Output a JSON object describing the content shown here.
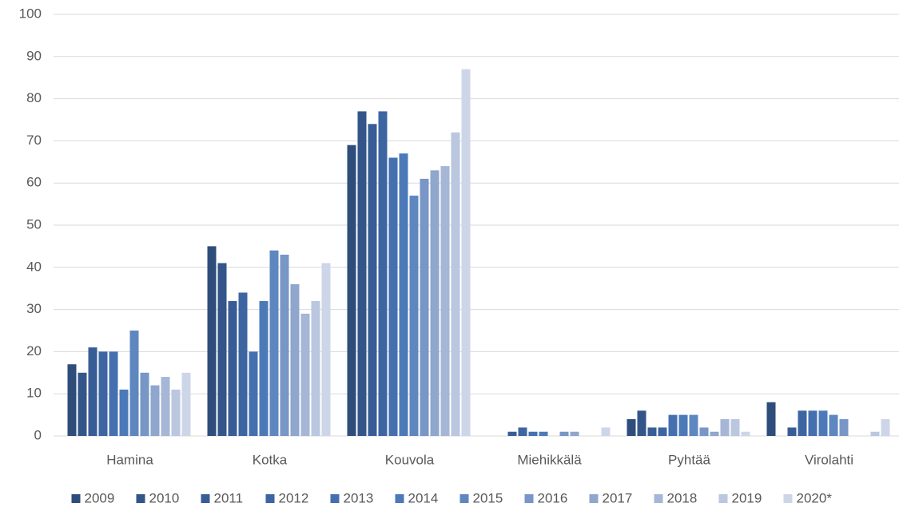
{
  "chart_data": {
    "type": "bar",
    "categories": [
      "Hamina",
      "Kotka",
      "Kouvola",
      "Miehikkälä",
      "Pyhtää",
      "Virolahti"
    ],
    "series": [
      {
        "name": "2009",
        "color": "#2e4d7b",
        "values": [
          17,
          45,
          69,
          0,
          4,
          8
        ]
      },
      {
        "name": "2010",
        "color": "#335589",
        "values": [
          15,
          41,
          77,
          0,
          6,
          0
        ]
      },
      {
        "name": "2011",
        "color": "#385d96",
        "values": [
          21,
          32,
          74,
          1,
          2,
          2
        ]
      },
      {
        "name": "2012",
        "color": "#3c65a2",
        "values": [
          20,
          34,
          77,
          2,
          2,
          6
        ]
      },
      {
        "name": "2013",
        "color": "#4470b0",
        "values": [
          20,
          20,
          66,
          1,
          5,
          6
        ]
      },
      {
        "name": "2014",
        "color": "#4c79b8",
        "values": [
          11,
          32,
          67,
          1,
          5,
          6
        ]
      },
      {
        "name": "2015",
        "color": "#5e87c0",
        "values": [
          25,
          44,
          57,
          0,
          5,
          5
        ]
      },
      {
        "name": "2016",
        "color": "#7896c6",
        "values": [
          15,
          43,
          61,
          1,
          2,
          4
        ]
      },
      {
        "name": "2017",
        "color": "#8fa6cd",
        "values": [
          12,
          36,
          63,
          1,
          1,
          0
        ]
      },
      {
        "name": "2018",
        "color": "#a5b6d6",
        "values": [
          14,
          29,
          64,
          0,
          4,
          0
        ]
      },
      {
        "name": "2019",
        "color": "#bac7df",
        "values": [
          11,
          32,
          72,
          0,
          4,
          1
        ]
      },
      {
        "name": "2020*",
        "color": "#cdd6e8",
        "values": [
          15,
          41,
          87,
          2,
          1,
          4
        ]
      }
    ],
    "ylim": [
      0,
      100
    ],
    "yticks": [
      0,
      10,
      20,
      30,
      40,
      50,
      60,
      70,
      80,
      90,
      100
    ],
    "grid": true,
    "legend": "bottom"
  }
}
